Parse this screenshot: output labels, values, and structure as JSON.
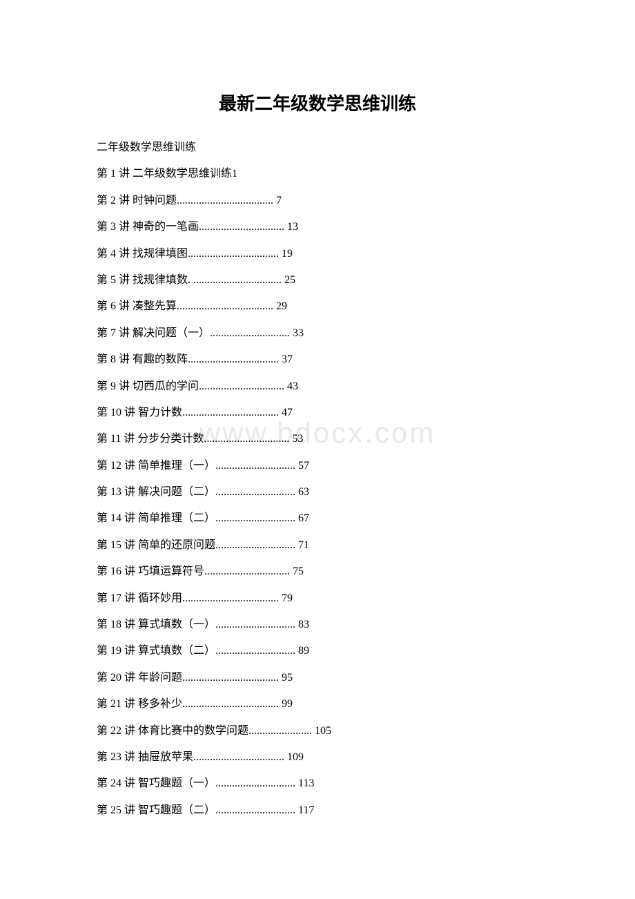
{
  "title": "最新二年级数学思维训练",
  "watermark": "www.bdocx.com",
  "subtitle": "二年级数学思维训练",
  "toc": [
    {
      "text": "第 1 讲 二年级数学思维训练1"
    },
    {
      "text": "第 2 讲 时钟问题................................... 7"
    },
    {
      "text": "第 3 讲 神奇的一笔画............................... 13"
    },
    {
      "text": "第 4 讲 找规律填图................................. 19"
    },
    {
      "text": "第 5 讲 找规律填数. ................................ 25"
    },
    {
      "text": "第 6 讲 凑整先算................................... 29"
    },
    {
      "text": "第 7 讲 解决问题（一）............................. 33"
    },
    {
      "text": "第 8 讲 有趣的数阵................................. 37"
    },
    {
      "text": "第 9 讲 切西瓜的学问............................... 43"
    },
    {
      "text": "第 10 讲 智力计数................................... 47"
    },
    {
      "text": "第 11 讲 分步分类计数............................... 53"
    },
    {
      "text": "第 12 讲 简单推理（一）............................. 57"
    },
    {
      "text": "第 13 讲 解决问题（二）............................. 63"
    },
    {
      "text": "第 14 讲 简单推理（二）............................. 67"
    },
    {
      "text": "第 15 讲 简单的还原问题............................. 71"
    },
    {
      "text": "第 16 讲 巧填运算符号............................... 75"
    },
    {
      "text": "第 17 讲 循环妙用................................... 79"
    },
    {
      "text": "第 18 讲 算式填数（一）............................. 83"
    },
    {
      "text": "第 19 讲 算式填数（二）............................. 89"
    },
    {
      "text": "第 20 讲 年龄问题................................... 95"
    },
    {
      "text": "第 21 讲 移多补少................................... 99"
    },
    {
      "text": "第 22 讲 体育比赛中的数学问题....................... 105"
    },
    {
      "text": "第 23 讲 抽屉放苹果................................. 109"
    },
    {
      "text": "第 24 讲 智巧趣题（一）............................. 113"
    },
    {
      "text": "第 25 讲 智巧趣题（二）............................. 117"
    }
  ]
}
